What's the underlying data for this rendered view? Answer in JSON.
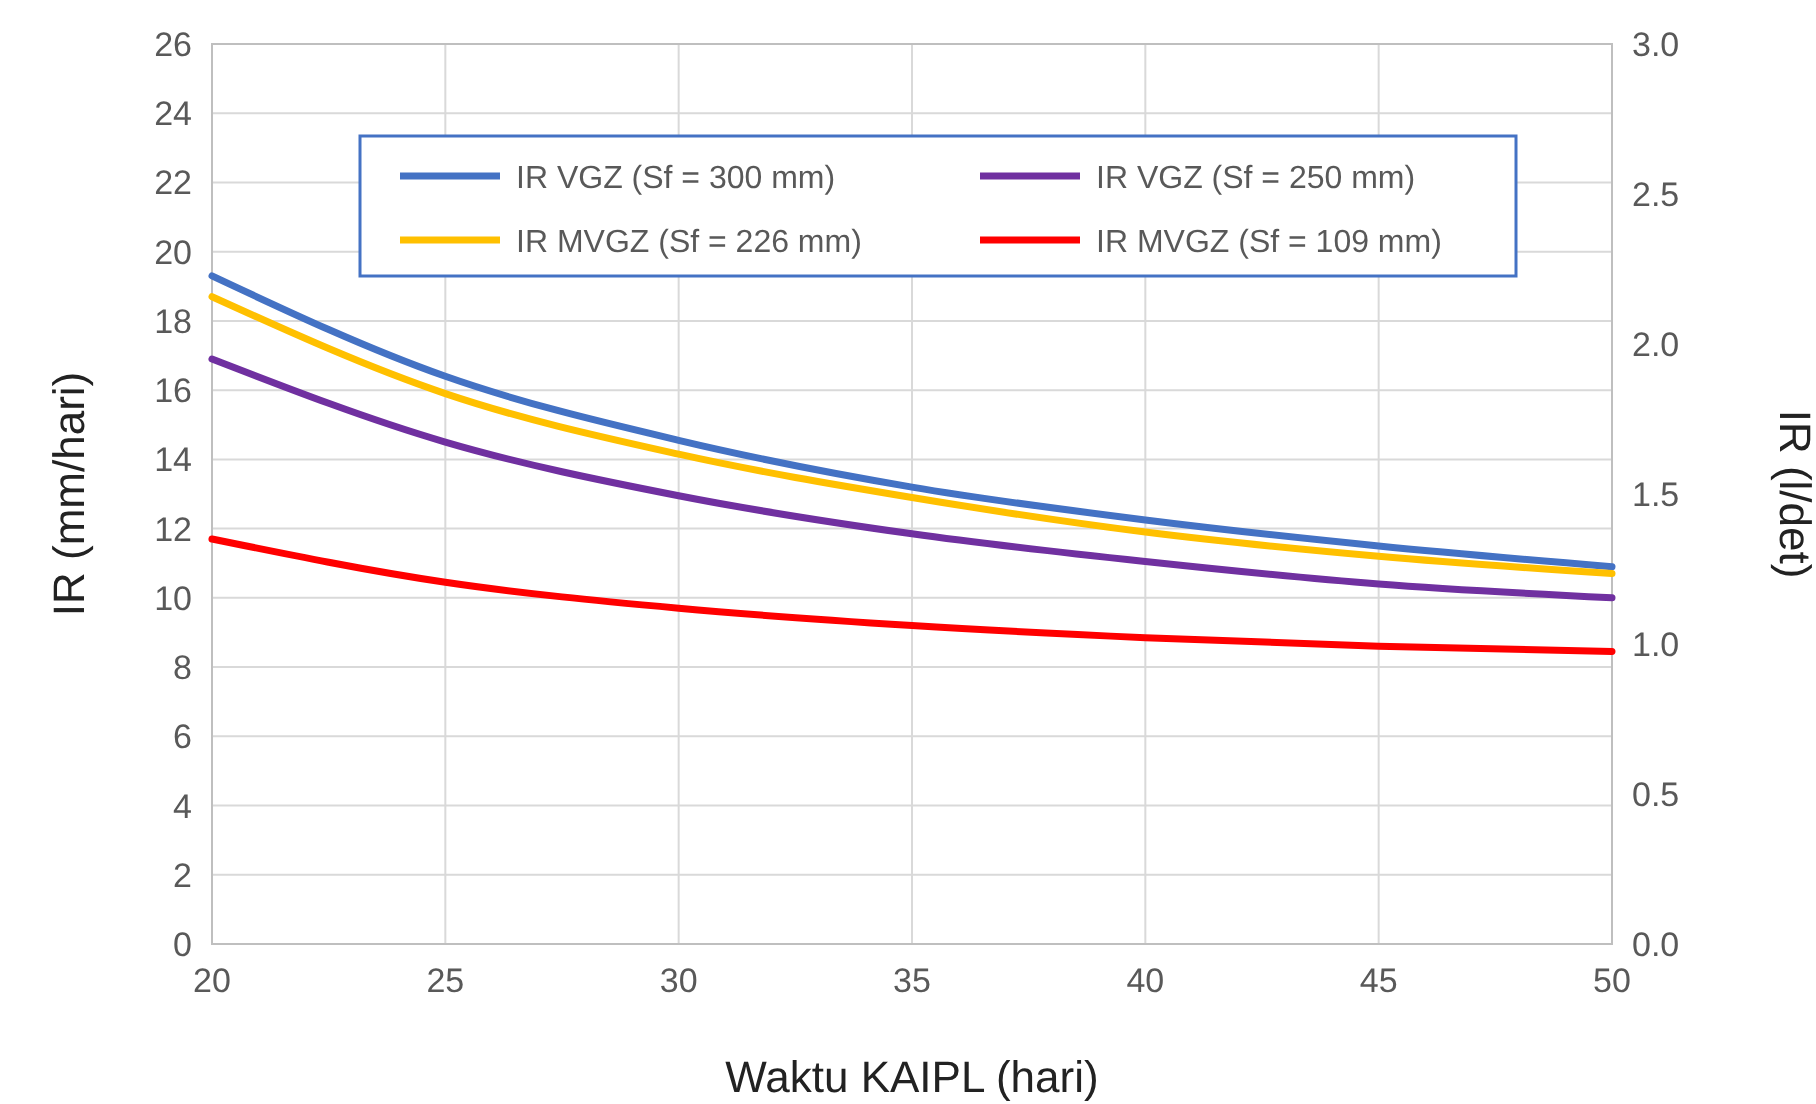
{
  "chart_data": {
    "type": "line",
    "xlabel": "Waktu KAIPL (hari)",
    "ylabel": "IR (mm/hari)",
    "y2label": "IR (l/det)",
    "x": [
      20,
      25,
      30,
      35,
      40,
      45,
      50
    ],
    "series": [
      {
        "name": "IR VGZ (Sf = 300 mm)",
        "color": "#4472c4",
        "values": [
          19.3,
          16.4,
          14.55,
          13.2,
          12.25,
          11.5,
          10.9
        ]
      },
      {
        "name": "IR VGZ (Sf = 250 mm)",
        "color": "#7030a0",
        "values": [
          16.9,
          14.5,
          12.95,
          11.85,
          11.05,
          10.4,
          10.0
        ]
      },
      {
        "name": "IR MVGZ (Sf = 226 mm)",
        "color": "#ffc000",
        "values": [
          18.7,
          15.9,
          14.15,
          12.9,
          11.9,
          11.2,
          10.7
        ]
      },
      {
        "name": "IR MVGZ (Sf = 109 mm)",
        "color": "#ff0000",
        "values": [
          11.7,
          10.45,
          9.7,
          9.2,
          8.85,
          8.6,
          8.45
        ]
      }
    ],
    "xlim": [
      20,
      50
    ],
    "xticks": [
      20,
      25,
      30,
      35,
      40,
      45,
      50
    ],
    "ylim": [
      0,
      26
    ],
    "yticks": [
      0,
      2,
      4,
      6,
      8,
      10,
      12,
      14,
      16,
      18,
      20,
      22,
      24,
      26
    ],
    "y2lim": [
      0,
      3
    ],
    "y2ticks": [
      {
        "value": 0,
        "label": "0.0"
      },
      {
        "value": 0.5,
        "label": "0.5"
      },
      {
        "value": 1,
        "label": "1.0"
      },
      {
        "value": 1.5,
        "label": "1.5"
      },
      {
        "value": 2,
        "label": "2.0"
      },
      {
        "value": 2.5,
        "label": "2.5"
      },
      {
        "value": 3,
        "label": "3.0"
      }
    ],
    "grid": true,
    "legend": "top",
    "marker": "none",
    "line_style": "solid"
  }
}
